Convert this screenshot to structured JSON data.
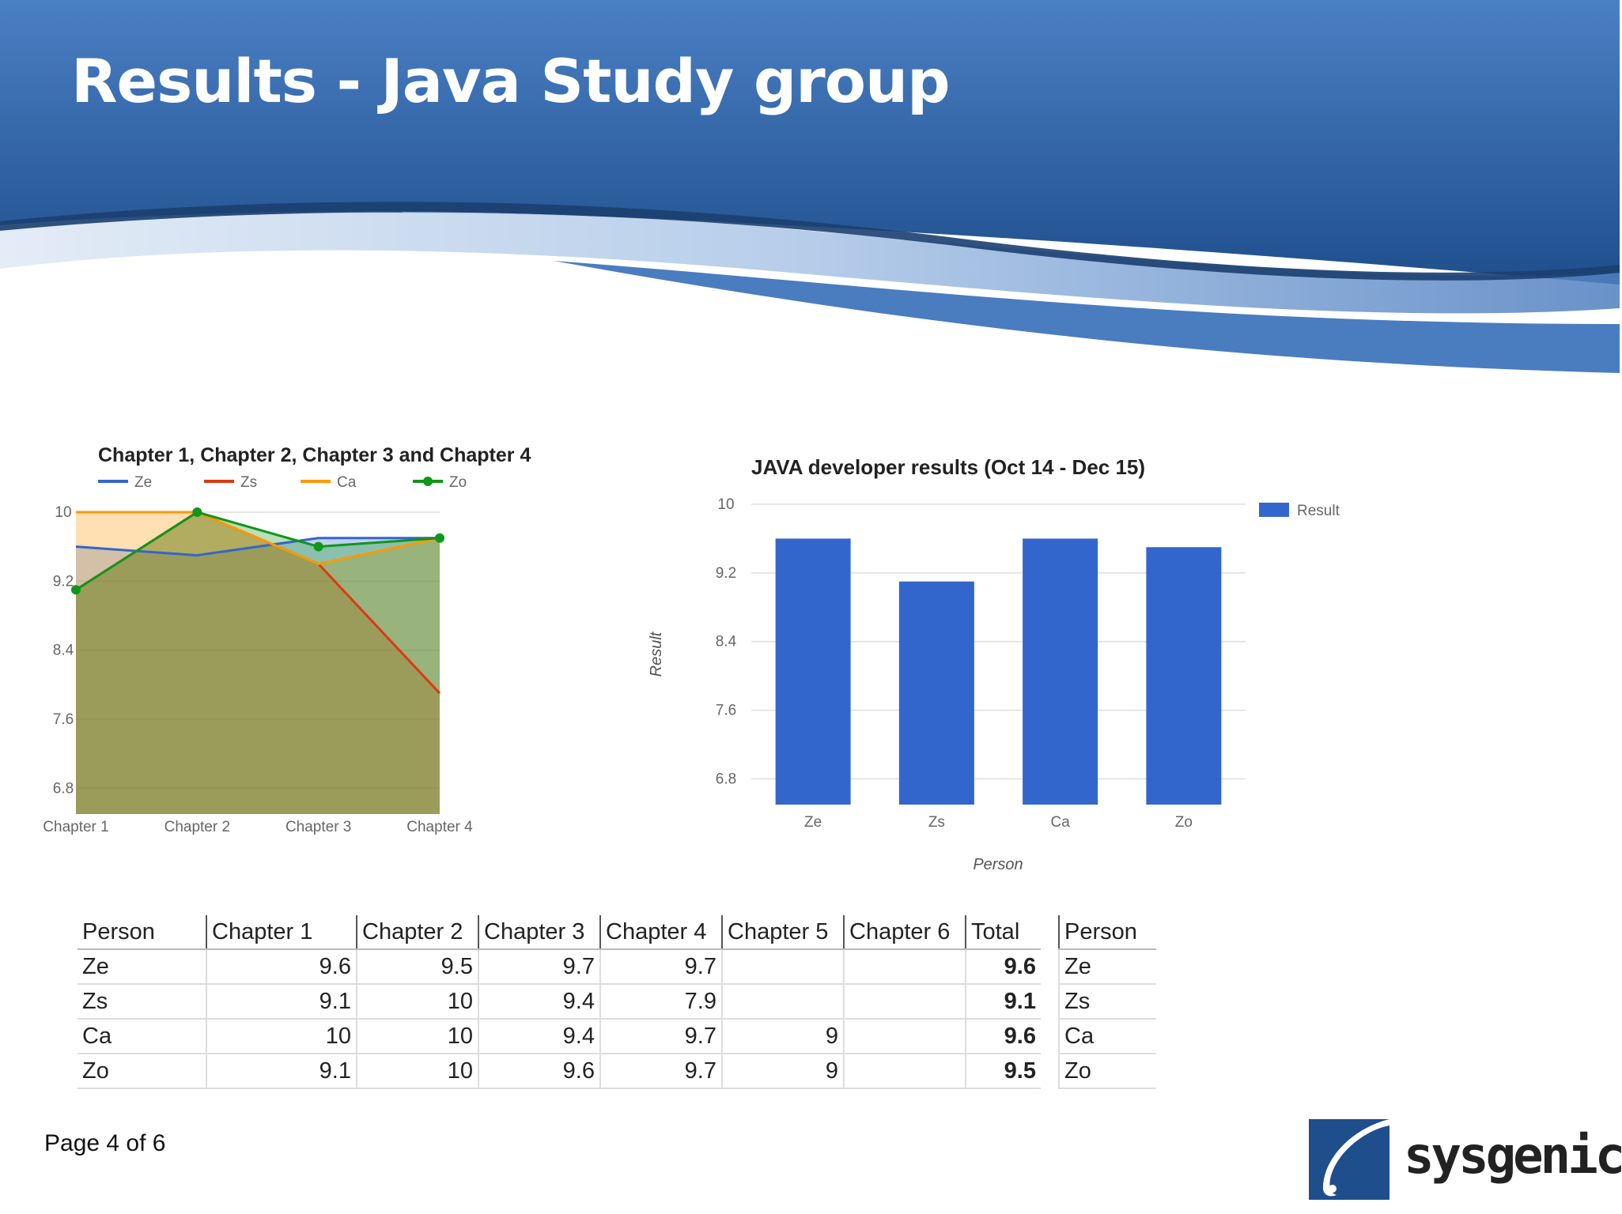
{
  "slide": {
    "title": "Results - Java Study group",
    "page_label": "Page 4 of 6",
    "logo_text": "sysgenic"
  },
  "colors": {
    "banner_dark": "#1f4e8c",
    "banner_mid": "#3c6fb5",
    "bar": "#3366cc",
    "ze": "#3366cc",
    "zs": "#dc3912",
    "ca": "#ff9900",
    "zo": "#109618"
  },
  "chart_data": [
    {
      "type": "area",
      "title": "Chapter 1, Chapter 2, Chapter 3 and Chapter 4",
      "categories": [
        "Chapter 1",
        "Chapter 2",
        "Chapter 3",
        "Chapter 4"
      ],
      "series": [
        {
          "name": "Ze",
          "values": [
            9.6,
            9.5,
            9.7,
            9.7
          ],
          "color": "#3366cc"
        },
        {
          "name": "Zs",
          "values": [
            9.1,
            10,
            9.4,
            7.9
          ],
          "color": "#dc3912"
        },
        {
          "name": "Ca",
          "values": [
            10,
            10,
            9.4,
            9.7
          ],
          "color": "#ff9900"
        },
        {
          "name": "Zo",
          "values": [
            9.1,
            10,
            9.6,
            9.7
          ],
          "color": "#109618"
        }
      ],
      "y_ticks": [
        "10",
        "9.2",
        "8.4",
        "7.6",
        "6.8"
      ],
      "ylim": [
        6.5,
        10
      ],
      "legend": "top",
      "grid": true
    },
    {
      "type": "bar",
      "title": "JAVA developer results (Oct 14 - Dec 15)",
      "categories": [
        "Ze",
        "Zs",
        "Ca",
        "Zo"
      ],
      "series": [
        {
          "name": "Result",
          "values": [
            9.6,
            9.1,
            9.6,
            9.5
          ],
          "color": "#3366cc"
        }
      ],
      "xlabel": "Person",
      "ylabel": "Result",
      "y_ticks": [
        "10",
        "9.2",
        "8.4",
        "7.6",
        "6.8"
      ],
      "ylim": [
        6.5,
        10
      ],
      "legend": "right",
      "grid": true
    }
  ],
  "table": {
    "headers": [
      "Person",
      "Chapter 1",
      "Chapter 2",
      "Chapter 3",
      "Chapter 4",
      "Chapter 5",
      "Chapter 6",
      "Total",
      "",
      "Person"
    ],
    "rows": [
      [
        "Ze",
        "9.6",
        "9.5",
        "9.7",
        "9.7",
        "",
        "",
        "9.6",
        "",
        "Ze"
      ],
      [
        "Zs",
        "9.1",
        "10",
        "9.4",
        "7.9",
        "",
        "",
        "9.1",
        "",
        "Zs"
      ],
      [
        "Ca",
        "10",
        "10",
        "9.4",
        "9.7",
        "9",
        "",
        "9.6",
        "",
        "Ca"
      ],
      [
        "Zo",
        "9.1",
        "10",
        "9.6",
        "9.7",
        "9",
        "",
        "9.5",
        "",
        "Zo"
      ]
    ]
  }
}
